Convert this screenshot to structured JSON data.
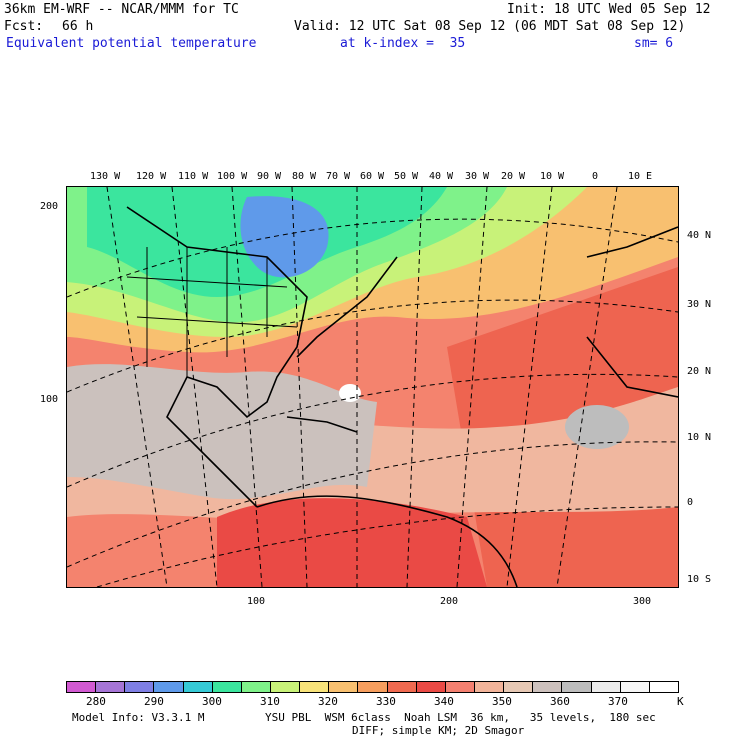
{
  "header": {
    "model": "36km EM-WRF -- NCAR/MMM for TC",
    "init": "Init: 18 UTC Wed 05 Sep 12",
    "fcst_label": "Fcst:",
    "fcst_value": "66 h",
    "valid": "Valid: 12 UTC Sat 08 Sep 12 (06 MDT Sat 08 Sep 12)",
    "field": "Equivalent potential temperature",
    "k_index": "at k-index =  35",
    "sm": "sm= 6"
  },
  "map": {
    "top_lon_labels": [
      "130 W",
      "120 W",
      "110 W",
      "100 W",
      "90 W",
      "80 W",
      "70 W",
      "60 W",
      "50 W",
      "40 W",
      "30 W",
      "20 W",
      "10 W",
      "0",
      "10 E"
    ],
    "right_lat_labels": [
      "40 N",
      "30 N",
      "20 N",
      "10 N",
      "0",
      "10 S"
    ],
    "left_grid_labels": [
      "200",
      "100"
    ],
    "bottom_grid_labels": [
      "100",
      "200",
      "300"
    ]
  },
  "colorbar": {
    "colors": [
      "#d25ad2",
      "#a675d6",
      "#7f7fe4",
      "#5f9aea",
      "#36cad6",
      "#3be59e",
      "#7ff28a",
      "#c8f279",
      "#f8e37a",
      "#f8c070",
      "#f69e5e",
      "#f06a50",
      "#ea4a45",
      "#f48070",
      "#f2b49a",
      "#e6c8b4",
      "#cdc1bd",
      "#bdbdbd",
      "#ececec",
      "#f6f6f6",
      "#ffffff"
    ],
    "labels": [
      "280",
      "290",
      "300",
      "310",
      "320",
      "330",
      "340",
      "350",
      "360",
      "370",
      "K"
    ]
  },
  "footer": {
    "line1_left": "Model Info: V3.3.1 M",
    "line1_right": "YSU PBL  WSM 6class  Noah LSM  36 km,   35 levels,  180 sec",
    "line2": "DIFF; simple KM; 2D Smagor"
  }
}
